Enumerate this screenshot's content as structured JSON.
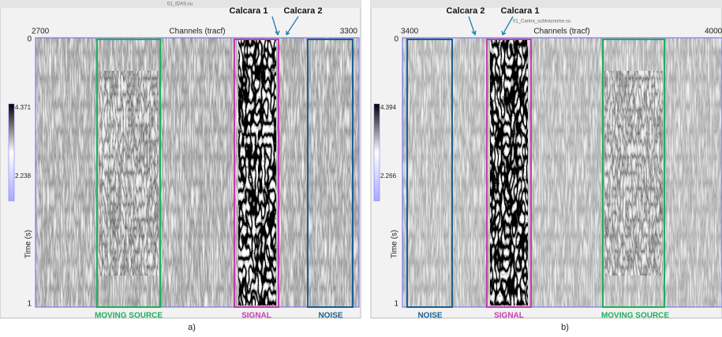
{
  "panels": [
    {
      "window_title": "01_IDAS.su",
      "x_axis_label": "Channels (tracf)",
      "x_ticks": [
        "2700",
        "3300"
      ],
      "y_ticks": [
        "0",
        "1"
      ],
      "y_axis_label": "Time (s)",
      "colorbar_labels": [
        "4.371",
        "2.238"
      ],
      "annotations": [
        "Calcara 1",
        "Calcara 2"
      ],
      "boxes": [
        "MOVING SOURCE",
        "SIGNAL",
        "NOISE"
      ],
      "caption": "a)"
    },
    {
      "window_title": "01_Carina_subtracnoise.su",
      "x_axis_label": "Channels (tracf)",
      "x_ticks": [
        "3400",
        "4000"
      ],
      "y_ticks": [
        "0",
        "1"
      ],
      "y_axis_label": "Time (s)",
      "colorbar_labels": [
        "4.394",
        "2.266"
      ],
      "annotations": [
        "Calcara 2",
        "Calcara 1"
      ],
      "boxes": [
        "NOISE",
        "SIGNAL",
        "MOVING SOURCE"
      ],
      "caption": "b)"
    }
  ]
}
